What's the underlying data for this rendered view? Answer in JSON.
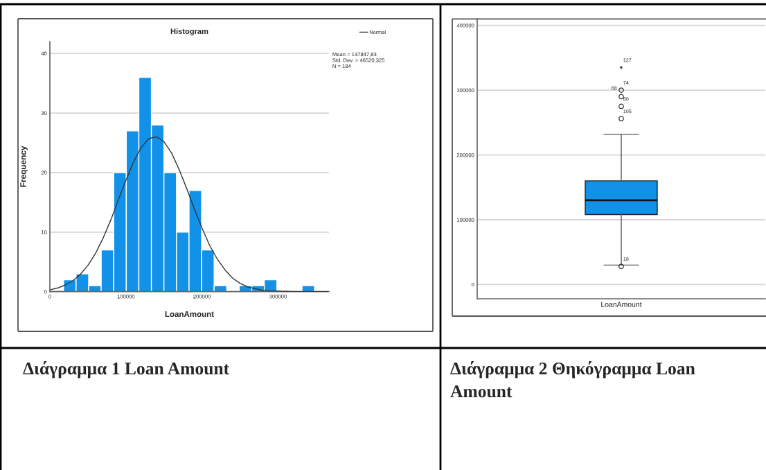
{
  "chart_data": [
    {
      "type": "histogram",
      "title": "Histogram",
      "xlabel": "LoanAmount",
      "ylabel": "Frequency",
      "color": "#1192e8",
      "bins": [
        18000,
        34500,
        51000,
        67500,
        84000,
        100500,
        117000,
        133500,
        150000,
        166500,
        183000,
        199500,
        216000,
        232500,
        249000,
        265500,
        282000,
        298500,
        315000,
        331500,
        348000
      ],
      "values": [
        2,
        3,
        1,
        7,
        20,
        27,
        36,
        28,
        20,
        10,
        17,
        7,
        1,
        0,
        1,
        1,
        2,
        0,
        0,
        1
      ],
      "series": [
        {
          "name": "Normal",
          "type": "line",
          "color": "#333333",
          "x": [
            0,
            10000,
            20000,
            30000,
            40000,
            50000,
            60000,
            70000,
            80000,
            90000,
            100000,
            110000,
            120000,
            130000,
            140000,
            150000,
            160000,
            170000,
            180000,
            190000,
            200000,
            210000,
            220000,
            230000,
            240000,
            250000,
            260000,
            270000,
            280000,
            290000,
            300000,
            320000,
            340000,
            365000
          ],
          "values": [
            0.3,
            0.6,
            1.1,
            1.8,
            2.9,
            4.4,
            6.4,
            9.0,
            12.0,
            15.4,
            18.7,
            21.8,
            24.2,
            25.7,
            26.0,
            25.2,
            23.3,
            20.5,
            17.3,
            13.9,
            10.7,
            7.8,
            5.5,
            3.7,
            2.3,
            1.4,
            0.8,
            0.5,
            0.2,
            0.1,
            0.1,
            0,
            0,
            0
          ]
        }
      ],
      "xlim": [
        0,
        367000
      ],
      "ylim": [
        0,
        42
      ],
      "xticks": [
        0,
        100000,
        200000,
        300000
      ],
      "yticks": [
        0,
        10,
        20,
        30,
        40
      ],
      "grid": "y",
      "legend": "top right",
      "annotations": [
        "Mean = 137847,83",
        "Std. Dev. = 46520,325",
        "N = 184",
        "Διάγραμμα 1 Loan Amount"
      ]
    },
    {
      "type": "box",
      "categories": [
        "LoanAmount"
      ],
      "color": "#1192e8",
      "boxes": [
        {
          "low": 30000,
          "q1": 108000,
          "median": 130000,
          "q3": 160000,
          "high": 232000
        }
      ],
      "series": [
        {
          "type": "scatter",
          "x": [
            "LoanAmount",
            "LoanAmount",
            "LoanAmount",
            "LoanAmount",
            "LoanAmount"
          ],
          "values": [
            28000,
            256000,
            275000,
            290000,
            300000
          ],
          "marker": "circle",
          "color": "#333333"
        },
        {
          "type": "scatter",
          "x": [
            "LoanAmount"
          ],
          "values": [
            335000
          ],
          "marker": "star",
          "color": "#222222"
        }
      ],
      "ylim": [
        -22000,
        410000
      ],
      "yticks": [
        0,
        100000,
        200000,
        300000,
        400000
      ],
      "grid": "y",
      "annotations": [
        {
          "text": "127",
          "x": "LoanAmount",
          "y": 335000
        },
        {
          "text": "74",
          "x": "LoanAmount",
          "y": 300000
        },
        {
          "text": "68",
          "x": "LoanAmount",
          "y": 290000
        },
        {
          "text": "60",
          "x": "LoanAmount",
          "y": 275000
        },
        {
          "text": "105",
          "x": "LoanAmount",
          "y": 256000
        },
        {
          "text": "18",
          "x": "LoanAmount",
          "y": 28000
        },
        "Διάγραμμα 2 Θηκόγραμμα Loan Amount"
      ]
    }
  ]
}
